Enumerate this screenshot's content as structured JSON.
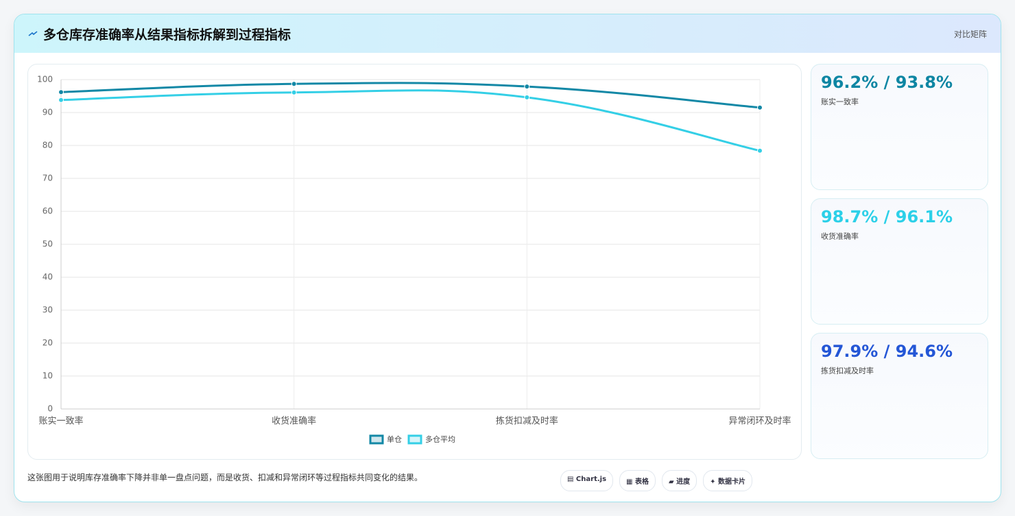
{
  "header": {
    "title": "多仓库存准确率从结果指标拆解到过程指标",
    "tag": "对比矩阵"
  },
  "chart_data": {
    "type": "line",
    "categories": [
      "账实一致率",
      "收货准确率",
      "拣货扣减及时率",
      "异常闭环及时率"
    ],
    "series": [
      {
        "name": "单仓",
        "color": "#1388a6",
        "values": [
          96.2,
          98.7,
          97.9,
          91.5
        ]
      },
      {
        "name": "多仓平均",
        "color": "#34cfe6",
        "values": [
          93.8,
          96.1,
          94.6,
          78.4
        ]
      }
    ],
    "ylim": [
      0,
      100
    ],
    "yticks": [
      0,
      10,
      20,
      30,
      40,
      50,
      60,
      70,
      80,
      90,
      100
    ],
    "grid": true,
    "legend": "bottom"
  },
  "kpis": [
    {
      "value": "96.2% / 93.8%",
      "label": "账实一致率",
      "color": "#0e86a3"
    },
    {
      "value": "98.7% / 96.1%",
      "label": "收货准确率",
      "color": "#2cd0e8"
    },
    {
      "value": "97.9% / 94.6%",
      "label": "拣货扣减及时率",
      "color": "#2456d6"
    }
  ],
  "footer": {
    "note": "这张图用于说明库存准确率下降并非单一盘点问题，而是收货、扣减和异常闭环等过程指标共同变化的结果。",
    "chips": [
      "▤ Chart.js",
      "▦ 表格",
      "▰ 进度",
      "✦ 数据卡片"
    ]
  }
}
